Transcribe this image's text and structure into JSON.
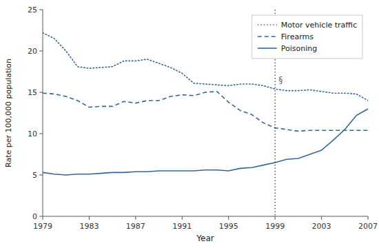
{
  "chart_data": {
    "type": "line",
    "x": [
      1979,
      1980,
      1981,
      1982,
      1983,
      1984,
      1985,
      1986,
      1987,
      1988,
      1989,
      1990,
      1991,
      1992,
      1993,
      1994,
      1995,
      1996,
      1997,
      1998,
      1999,
      2000,
      2001,
      2002,
      2003,
      2004,
      2005,
      2006,
      2007
    ],
    "series": [
      {
        "name": "Motor vehicle traffic",
        "color": "#336699",
        "line_style": "dotted",
        "values": [
          22.2,
          21.5,
          20.0,
          18.1,
          17.9,
          18.0,
          18.1,
          18.8,
          18.8,
          19.0,
          18.5,
          18.0,
          17.3,
          16.1,
          16.0,
          15.9,
          15.8,
          16.0,
          16.0,
          15.8,
          15.4,
          15.2,
          15.2,
          15.3,
          15.1,
          14.9,
          14.9,
          14.8,
          14.0
        ]
      },
      {
        "name": "Firearms",
        "color": "#336699",
        "line_style": "dashed",
        "values": [
          14.9,
          14.8,
          14.5,
          14.0,
          13.2,
          13.3,
          13.3,
          13.9,
          13.7,
          14.0,
          14.0,
          14.5,
          14.7,
          14.6,
          15.0,
          15.1,
          13.8,
          12.8,
          12.3,
          11.3,
          10.7,
          10.5,
          10.3,
          10.4,
          10.4,
          10.4,
          10.4,
          10.4,
          10.4
        ]
      },
      {
        "name": "Poisoning",
        "color": "#336699",
        "line_style": "solid",
        "values": [
          5.3,
          5.1,
          5.0,
          5.1,
          5.1,
          5.2,
          5.3,
          5.3,
          5.4,
          5.4,
          5.5,
          5.5,
          5.5,
          5.5,
          5.6,
          5.6,
          5.5,
          5.8,
          5.9,
          6.2,
          6.5,
          6.9,
          7.0,
          7.5,
          8.0,
          9.2,
          10.5,
          12.2,
          13.0
        ]
      }
    ],
    "annotations": [
      {
        "type": "vline",
        "x": 1999,
        "y": 16.5,
        "text": "§"
      }
    ],
    "xlabel": "Year",
    "ylabel": "Rate per 100,000 population",
    "xlim": [
      1979,
      2007
    ],
    "ylim": [
      0,
      25
    ],
    "xticks": [
      1979,
      1983,
      1987,
      1991,
      1995,
      1999,
      2003,
      2007
    ],
    "yticks": [
      0,
      5,
      10,
      15,
      20,
      25
    ],
    "grid": false,
    "legend": "upper right"
  }
}
